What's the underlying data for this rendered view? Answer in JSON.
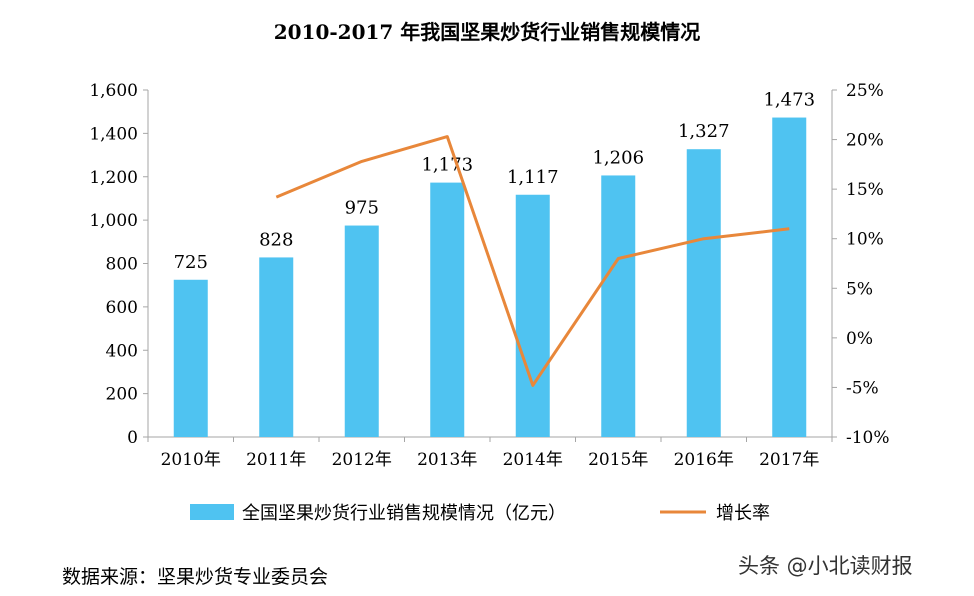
{
  "page": {
    "title": "2010-2017 年我国坚果炒货行业销售规模情况",
    "source": "数据来源：坚果炒货专业委员会",
    "watermark": "头条 @小北读财报"
  },
  "colors": {
    "bar": "#4FC3F1",
    "line": "#E8873A",
    "axis": "#A6A6A6"
  },
  "chart_data": {
    "type": "bar",
    "title": "2010-2017 年我国坚果炒货行业销售规模情况",
    "categories": [
      "2010年",
      "2011年",
      "2012年",
      "2013年",
      "2014年",
      "2015年",
      "2016年",
      "2017年"
    ],
    "series": [
      {
        "name": "全国坚果炒货行业销售规模情况（亿元）",
        "type": "bar",
        "axis": "left",
        "values": [
          725,
          828,
          975,
          1173,
          1117,
          1206,
          1327,
          1473
        ],
        "labels": [
          "725",
          "828",
          "975",
          "1,173",
          "1,117",
          "1,206",
          "1,327",
          "1,473"
        ]
      },
      {
        "name": "增长率",
        "type": "line",
        "axis": "right",
        "values": [
          null,
          14.2,
          17.8,
          20.3,
          -4.8,
          8.0,
          10.0,
          11.0
        ]
      }
    ],
    "y_left": {
      "range": [
        0,
        1600
      ],
      "ticks": [
        0,
        200,
        400,
        600,
        800,
        1000,
        1200,
        1400,
        1600
      ],
      "tick_labels": [
        "0",
        "200",
        "400",
        "600",
        "800",
        "1,000",
        "1,200",
        "1,400",
        "1,600"
      ]
    },
    "y_right": {
      "range": [
        -10,
        25
      ],
      "ticks": [
        -10,
        -5,
        0,
        5,
        10,
        15,
        20,
        25
      ],
      "tick_labels": [
        "-10%",
        "-5%",
        "0%",
        "5%",
        "10%",
        "15%",
        "20%",
        "25%"
      ]
    },
    "grid": false,
    "legend_position": "bottom"
  }
}
